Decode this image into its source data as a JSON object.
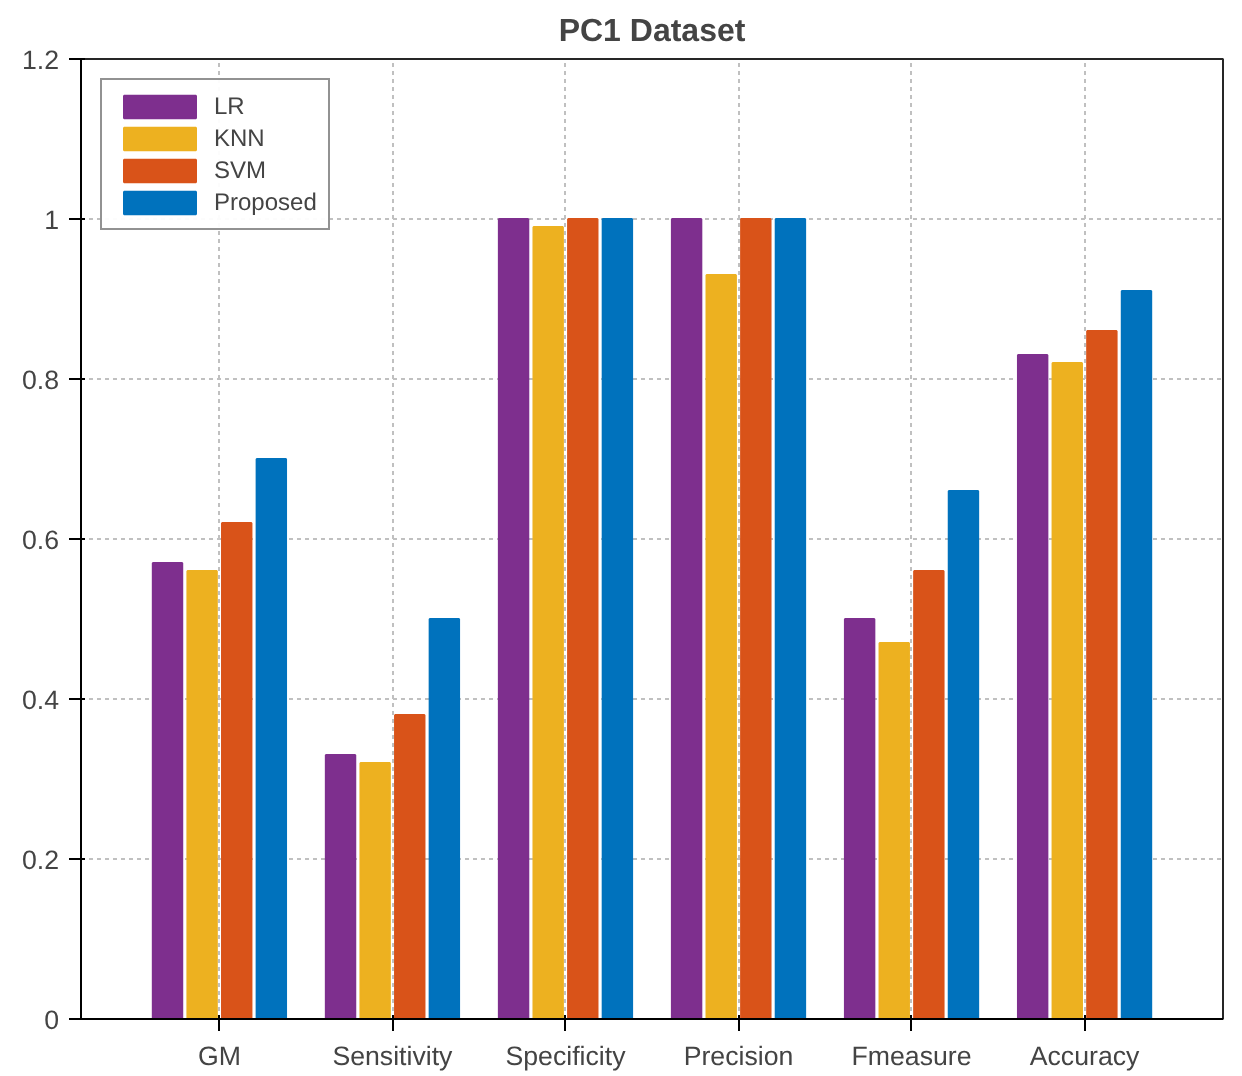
{
  "chart_data": {
    "type": "bar",
    "title": "PC1 Dataset",
    "categories": [
      "GM",
      "Sensitivity",
      "Specificity",
      "Precision",
      "Fmeasure",
      "Accuracy"
    ],
    "series": [
      {
        "name": "LR",
        "color": "#7e2f8e",
        "values": [
          0.57,
          0.33,
          1.0,
          1.0,
          0.5,
          0.83
        ]
      },
      {
        "name": "KNN",
        "color": "#edb120",
        "values": [
          0.56,
          0.32,
          0.99,
          0.93,
          0.47,
          0.82
        ]
      },
      {
        "name": "SVM",
        "color": "#d95319",
        "values": [
          0.62,
          0.38,
          1.0,
          1.0,
          0.56,
          0.86
        ]
      },
      {
        "name": "Proposed",
        "color": "#0072bd",
        "values": [
          0.7,
          0.5,
          1.0,
          1.0,
          0.66,
          0.91
        ]
      }
    ],
    "ylim": [
      0,
      1.2
    ],
    "yticks": [
      0,
      0.2,
      0.4,
      0.6,
      0.8,
      1,
      1.2
    ],
    "grid": true,
    "legend": "top left"
  }
}
